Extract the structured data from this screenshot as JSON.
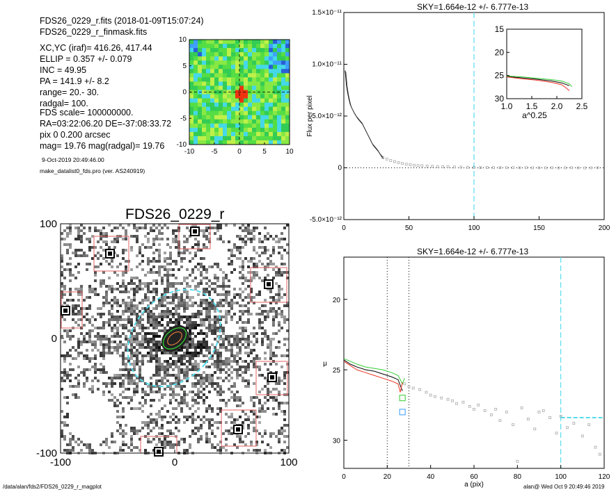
{
  "header": {
    "lines": [
      "FDS26_0229_r.fits  (2018-01-09T15:07:24)",
      "FDS26_0229_r_finmask.fits",
      "XC,YC (iraf)=   416.26, 417.44",
      "ELLIP = 0.357 +/- 0.079",
      "INC    = 49.95",
      "PA     = 141.9 +/-    8.2",
      "range=   20.-   30.",
      "radgal=  100.",
      "FDS scale=  100000000.",
      "RA=03:22:06.20   DE=-37:08:33.72",
      "pix 0 0.200 arcsec",
      "mag=  19.76  mag(radgal)=  19.76"
    ],
    "date": "9-Oct-2019 20:49:46.00",
    "program": "make_datalist0_fds.pro (ver. AS240919)"
  },
  "footer": {
    "path": "/data/alan/fds2/FDS26_0229_r_magplot",
    "stamp": "alan@  Wed Oct  9 20:49:46 2019"
  },
  "colors": {
    "cyan": "#55ddee",
    "red_box": "#e06060",
    "green": "#33cc33",
    "red": "#ee3322",
    "black": "#000000",
    "gray": "#aaaaaa"
  },
  "chart_data": [
    {
      "id": "velocity_map",
      "type": "heatmap",
      "xlim": [
        -10,
        10
      ],
      "ylim": [
        -10,
        10
      ],
      "xticks": [
        "-10",
        "-5",
        "0",
        "5",
        "10"
      ],
      "yticks": [
        "10",
        "5",
        "0",
        "-5",
        "-10"
      ],
      "note": "color-coded residual map, green/yellow background, blue and red patches"
    },
    {
      "id": "image_panel",
      "type": "heatmap",
      "title": "FDS26_0229_r",
      "xticks": [
        "-100",
        "0",
        "100"
      ],
      "yticks": [
        "100",
        "0",
        "-100"
      ],
      "xlim": [
        -200,
        200
      ],
      "ylim": [
        -200,
        200
      ],
      "ellipse_radius_outer": 100,
      "masked_boxes": 9
    },
    {
      "id": "flux_profile",
      "type": "scatter",
      "title": "SKY=1.664e-12 +/- 6.777e-13",
      "ylabel": "Flux per pixel",
      "xlim": [
        0,
        200
      ],
      "ylim": [
        -5e-12,
        1.5e-11
      ],
      "xticks": [
        "0",
        "50",
        "100",
        "150",
        "200"
      ],
      "yticks": [
        "1.5×10⁻¹¹",
        "1.0×10⁻¹¹",
        "5.0×10⁻¹²",
        "0",
        "-5.0×10⁻¹²"
      ],
      "vline": 100,
      "series": [
        {
          "x": [
            1,
            2,
            3,
            4,
            5,
            6,
            8,
            10,
            12,
            14,
            16,
            18,
            20,
            22,
            24,
            26,
            28,
            30
          ],
          "values": [
            9.4e-12,
            8e-12,
            7.2e-12,
            6.6e-12,
            6.1e-12,
            5.8e-12,
            5.3e-12,
            4.9e-12,
            4.6e-12,
            4.3e-12,
            3.8e-12,
            3.3e-12,
            2.8e-12,
            2.3e-12,
            2e-12,
            1.7e-12,
            1.3e-12,
            1e-12
          ]
        }
      ],
      "points_x": [
        30,
        33,
        36,
        39,
        42,
        45,
        48,
        51,
        54,
        57,
        60,
        64,
        68,
        72,
        76,
        80,
        85,
        90,
        95,
        100,
        105,
        110,
        115,
        120,
        125,
        130,
        135,
        140,
        145,
        150,
        155,
        160,
        165,
        170,
        175,
        180,
        185,
        190,
        195
      ],
      "points_y": [
        1e-12,
        8.5e-13,
        7e-13,
        6e-13,
        5e-13,
        4.2e-13,
        3.5e-13,
        3e-13,
        2.5e-13,
        2.2e-13,
        2e-13,
        1.7e-13,
        1.5e-13,
        1.2e-13,
        1e-13,
        1.2e-13,
        8e-14,
        7e-14,
        5e-14,
        4e-14,
        3e-14,
        4e-14,
        2e-14,
        3e-14,
        1e-14,
        2e-14,
        1e-14,
        2e-14,
        0,
        1e-14,
        0,
        1e-14,
        -1e-14,
        0,
        1e-14,
        0,
        -1e-14,
        0,
        1e-14
      ]
    },
    {
      "id": "inset_profile",
      "type": "line",
      "xlabel": "a^0.25",
      "xlim": [
        1.0,
        2.5
      ],
      "ylim": [
        30,
        15
      ],
      "xticks": [
        "1.0",
        "1.5",
        "2.0",
        "2.5"
      ],
      "yticks": [
        "15",
        "20",
        "25",
        "30"
      ],
      "series": [
        {
          "name": "black",
          "x": [
            1.0,
            1.3,
            1.6,
            1.9,
            2.1,
            2.25
          ],
          "values": [
            25.2,
            25.5,
            25.8,
            26.2,
            26.6,
            27.2
          ]
        },
        {
          "name": "green",
          "x": [
            1.0,
            1.3,
            1.6,
            1.9,
            2.1,
            2.25,
            2.3
          ],
          "values": [
            25.1,
            25.3,
            25.6,
            25.9,
            26.2,
            26.8,
            27.4
          ]
        },
        {
          "name": "red",
          "x": [
            1.0,
            1.3,
            1.6,
            1.9,
            2.1,
            2.2,
            2.25
          ],
          "values": [
            25.3,
            25.7,
            26.0,
            26.5,
            27.0,
            27.8,
            28.3
          ]
        }
      ]
    },
    {
      "id": "mu_profile",
      "type": "scatter",
      "title": "SKY=1.664e-12 +/- 6.777e-13",
      "xlabel": "a (pix)",
      "ylabel": "μ",
      "xlim": [
        0,
        120
      ],
      "ylim": [
        32,
        17
      ],
      "xticks": [
        "0",
        "20",
        "40",
        "60",
        "80",
        "100",
        "120"
      ],
      "yticks": [
        "20",
        "25",
        "30"
      ],
      "vlines_dotted": [
        20,
        30
      ],
      "vline_dashed": 100,
      "sky_level": 28.4,
      "series": [
        {
          "name": "black",
          "x": [
            0,
            3,
            6,
            10,
            14,
            18,
            22,
            25,
            27
          ],
          "values": [
            24.3,
            24.6,
            24.8,
            25.0,
            25.1,
            25.3,
            25.5,
            25.7,
            26.5
          ]
        },
        {
          "name": "green",
          "x": [
            0,
            3,
            6,
            10,
            14,
            18,
            22,
            25,
            27,
            28
          ],
          "values": [
            24.2,
            24.4,
            24.6,
            24.8,
            24.9,
            25.0,
            25.2,
            25.4,
            26.0,
            25.6
          ]
        },
        {
          "name": "red",
          "x": [
            0,
            3,
            6,
            10,
            14,
            18,
            22,
            25,
            26,
            27
          ],
          "values": [
            24.4,
            24.7,
            25.0,
            25.2,
            25.4,
            25.6,
            25.8,
            26.0,
            26.6,
            25.9
          ]
        }
      ],
      "points_x": [
        28,
        30,
        32,
        35,
        38,
        40,
        42,
        45,
        48,
        50,
        52,
        55,
        58,
        60,
        62,
        65,
        68,
        70,
        72,
        75,
        78,
        80,
        82,
        85,
        88,
        90,
        92,
        95,
        98,
        100,
        103,
        106,
        110,
        113,
        116,
        118
      ],
      "points_y": [
        26.0,
        26.2,
        26.3,
        26.4,
        26.6,
        26.8,
        26.9,
        27.0,
        27.1,
        27.2,
        27.4,
        27.3,
        27.6,
        27.8,
        27.5,
        27.9,
        28.2,
        27.8,
        28.6,
        28.0,
        28.9,
        31.5,
        27.7,
        28.5,
        29.2,
        28.0,
        27.9,
        28.4,
        29.5,
        28.3,
        29.1,
        28.8,
        29.7,
        28.9,
        30.5,
        31.0
      ],
      "box_markers": [
        {
          "x": 27,
          "y": 27.0,
          "color": "#33cc33"
        },
        {
          "x": 27,
          "y": 28.0,
          "color": "#3399ff"
        }
      ]
    }
  ]
}
